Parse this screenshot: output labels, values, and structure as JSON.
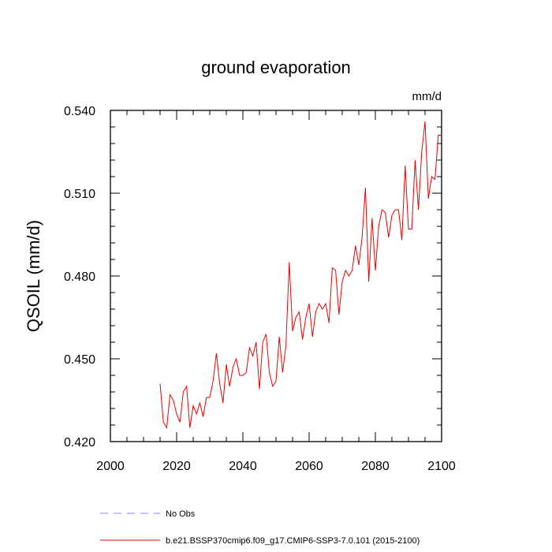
{
  "chart_data": {
    "type": "line",
    "title": "ground evaporation",
    "units_label": "mm/d",
    "ylabel": "QSOIL  (mm/d)",
    "xlabel": "",
    "xlim": [
      2000,
      2100
    ],
    "ylim": [
      0.42,
      0.54
    ],
    "x_ticks": [
      2000,
      2020,
      2040,
      2060,
      2080,
      2100
    ],
    "x_tick_labels": [
      "2000",
      "2020",
      "2040",
      "2060",
      "2080",
      "2100"
    ],
    "y_ticks": [
      0.42,
      0.45,
      0.48,
      0.51,
      0.54
    ],
    "y_tick_labels": [
      "0.420",
      "0.450",
      "0.480",
      "0.510",
      "0.540"
    ],
    "grid": false,
    "series": [
      {
        "name": "b.e21.BSSP370cmip6.f09_g17.CMIP6-SSP3-7.0.101 (2015-2100)",
        "color": "#e60000",
        "x": [
          2015,
          2016,
          2017,
          2018,
          2019,
          2020,
          2021,
          2022,
          2023,
          2024,
          2025,
          2026,
          2027,
          2028,
          2029,
          2030,
          2031,
          2032,
          2033,
          2034,
          2035,
          2036,
          2037,
          2038,
          2039,
          2040,
          2041,
          2042,
          2043,
          2044,
          2045,
          2046,
          2047,
          2048,
          2049,
          2050,
          2051,
          2052,
          2053,
          2054,
          2055,
          2056,
          2057,
          2058,
          2059,
          2060,
          2061,
          2062,
          2063,
          2064,
          2065,
          2066,
          2067,
          2068,
          2069,
          2070,
          2071,
          2072,
          2073,
          2074,
          2075,
          2076,
          2077,
          2078,
          2079,
          2080,
          2081,
          2082,
          2083,
          2084,
          2085,
          2086,
          2087,
          2088,
          2089,
          2090,
          2091,
          2092,
          2093,
          2094,
          2095,
          2096,
          2097,
          2098,
          2099,
          2100
        ],
        "values": [
          0.441,
          0.427,
          0.425,
          0.437,
          0.435,
          0.43,
          0.427,
          0.438,
          0.44,
          0.425,
          0.433,
          0.43,
          0.434,
          0.429,
          0.436,
          0.436,
          0.442,
          0.452,
          0.441,
          0.434,
          0.448,
          0.44,
          0.447,
          0.45,
          0.444,
          0.444,
          0.445,
          0.454,
          0.451,
          0.456,
          0.439,
          0.456,
          0.459,
          0.445,
          0.44,
          0.442,
          0.458,
          0.445,
          0.455,
          0.485,
          0.46,
          0.465,
          0.467,
          0.457,
          0.465,
          0.47,
          0.458,
          0.467,
          0.47,
          0.468,
          0.47,
          0.463,
          0.483,
          0.482,
          0.466,
          0.478,
          0.482,
          0.48,
          0.482,
          0.491,
          0.484,
          0.494,
          0.512,
          0.478,
          0.501,
          0.482,
          0.498,
          0.504,
          0.503,
          0.494,
          0.502,
          0.504,
          0.504,
          0.493,
          0.52,
          0.497,
          0.497,
          0.522,
          0.504,
          0.525,
          0.536,
          0.508,
          0.516,
          0.515,
          0.531,
          0.531
        ]
      },
      {
        "name": "No Obs",
        "color": "#8a8aff",
        "dashed": true,
        "x": [],
        "values": []
      }
    ]
  }
}
